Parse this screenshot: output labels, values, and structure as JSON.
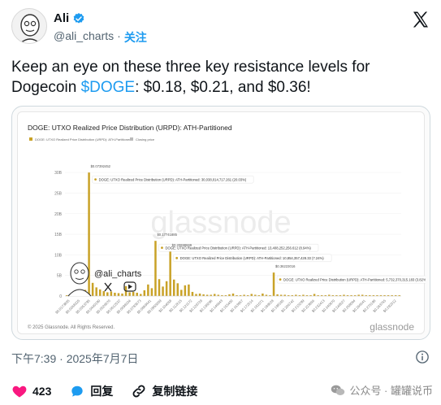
{
  "author": {
    "name": "Ali",
    "handle": "@ali_charts",
    "separator": "·",
    "follow_label": "关注"
  },
  "tweet": {
    "text_before": "Keep an eye on these three key resistance levels for Dogecoin ",
    "cashtag": "$DOGE",
    "text_after": ": $0.18, $0.21, and $0.36!"
  },
  "chart_data": {
    "type": "bar",
    "title": "DOGE: UTXO Realized Price Distribution (URPD): ATH-Partitioned",
    "legend": [
      "DOGE: UTXO Realized Price Distribution (URPD): ATH-Partitioned",
      "Closing price"
    ],
    "y_ticks": [
      "30B",
      "25B",
      "20B",
      "15B",
      "10B",
      "5B",
      "0"
    ],
    "x_ticks": [
      "$0.0173805",
      "$0.0268325",
      "$0.0353795",
      "$0.0440190",
      "$0.0526870",
      "$0.0612537",
      "$0.0698104",
      "$0.0783673",
      "$0.0869441",
      "$0.0955009",
      "$0.104058",
      "$0.112615",
      "$0.121172",
      "$0.129729",
      "$0.138286",
      "$0.146843",
      "$0.155400",
      "$0.163957",
      "$0.172514",
      "$0.181071",
      "$0.189628",
      "$0.198185",
      "$0.206742",
      "$0.215299",
      "$0.223856",
      "$0.232413",
      "$0.240970",
      "$0.249527",
      "$0.258084",
      "$0.266641",
      "$0.275198",
      "$0.283755",
      "$0.292312"
    ],
    "ylim": [
      0,
      32
    ],
    "values_b": [
      0.2,
      0.4,
      0.3,
      0.6,
      0.5,
      1.5,
      30.0,
      3.2,
      2.1,
      1.6,
      1.2,
      0.9,
      1.1,
      0.8,
      0.7,
      0.6,
      2.4,
      0.9,
      1.0,
      0.8,
      0.5,
      1.4,
      2.8,
      1.9,
      13.4,
      4.1,
      2.3,
      3.6,
      10.9,
      4.0,
      3.1,
      1.5,
      2.6,
      2.8,
      1.0,
      0.5,
      0.6,
      0.4,
      0.3,
      0.3,
      0.5,
      0.3,
      0.2,
      0.2,
      0.4,
      0.6,
      0.2,
      0.2,
      0.3,
      0.2,
      0.5,
      0.3,
      0.2,
      0.6,
      0.3,
      0.2,
      5.7,
      0.4,
      0.3,
      0.3,
      0.2,
      0.2,
      0.3,
      0.2,
      0.3,
      0.2,
      0.2,
      0.5,
      0.2,
      0.2,
      0.2,
      0.3,
      0.2,
      0.2,
      0.2,
      0.3,
      0.2,
      0.2,
      0.2,
      0.3,
      0.3,
      0.2,
      0.2,
      0.2,
      0.2,
      0.2,
      0.2,
      0.2,
      0.2,
      0.2,
      0.2
    ],
    "annotations": [
      {
        "price": "$0.07392452",
        "label": "DOGE: UTXO Realized Price Distribution (URPD): ATH-Partitioned: 30,038,014,717.261 (20.03%)"
      },
      {
        "price": "$0.17741885",
        "label": "DOGE: UTXO Realized Price Distribution (URPD): ATH-Partitioned: 13,408,252,256.612 (8.94%)"
      },
      {
        "price": "$0.20698669",
        "label": "DOGE: UTXO Realized Price Distribution (URPD): ATH-Partitioned: 10,854,357,428.33 (7.24%)"
      },
      {
        "price": "$0.36223016",
        "label": "DOGE: UTXO Realized Price Distribution (URPD): ATH-Partitioned: 5,732,370,315.183 (3.82%)"
      }
    ],
    "watermark": "glassnode",
    "copyright": "© 2025 Glassnode. All Rights Reserved.",
    "brand": "glassnode",
    "overlay_handle": "@ali_charts",
    "bar_color": "#c9a227"
  },
  "footer": {
    "timestamp": "下午7:39 · 2025年7月7日"
  },
  "actions": {
    "likes": "423",
    "reply_label": "回复",
    "copy_link_label": "复制链接"
  },
  "wechat": {
    "label": "公众号 · 罐罐说币"
  }
}
